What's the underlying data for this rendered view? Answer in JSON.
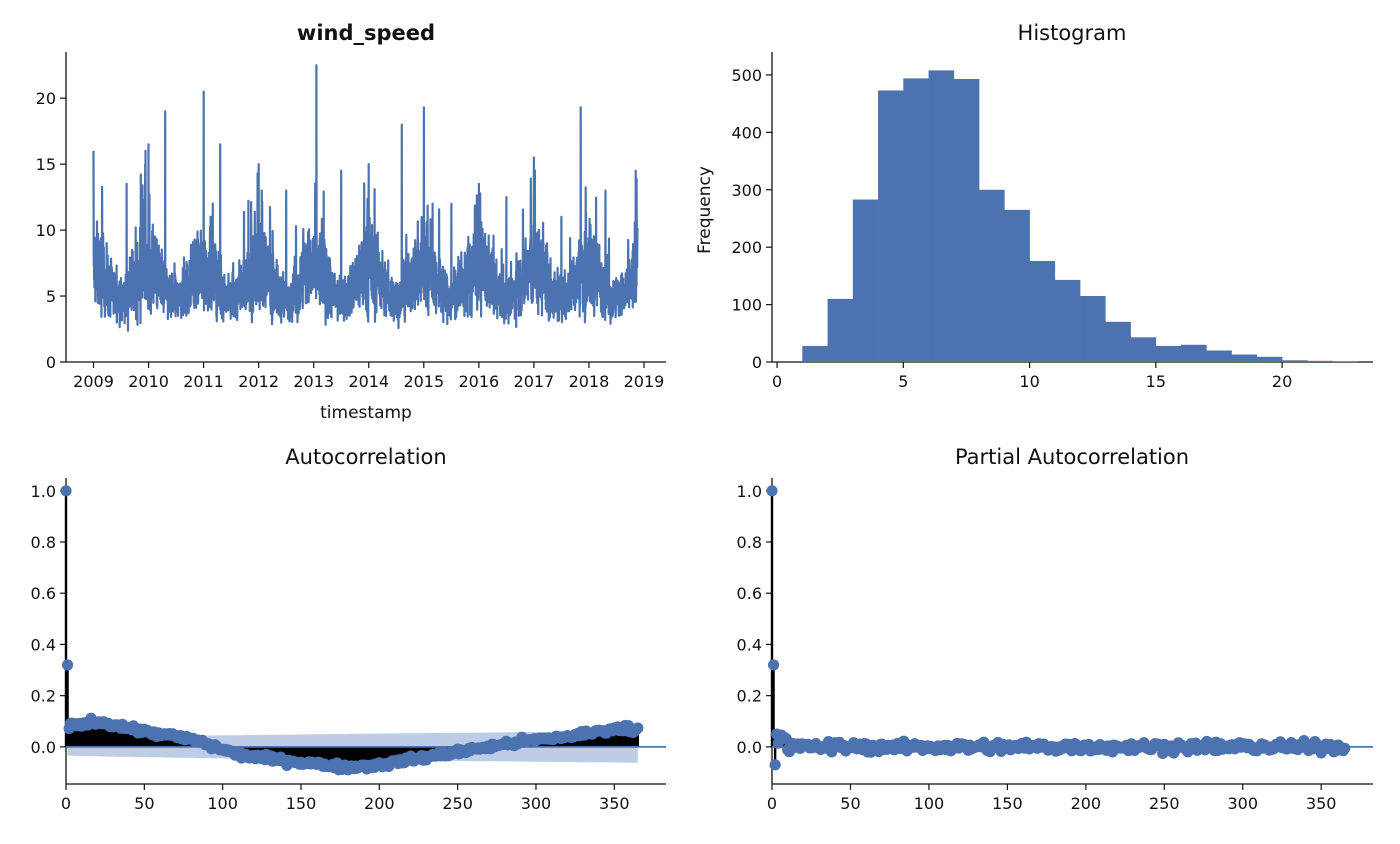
{
  "chart_data": [
    {
      "type": "line",
      "title": "wind_speed",
      "xlabel": "timestamp",
      "ylabel": "",
      "xlim": [
        2008.5,
        2019.4
      ],
      "ylim": [
        0,
        23.5
      ],
      "x_ticks": [
        2009,
        2010,
        2011,
        2012,
        2013,
        2014,
        2015,
        2016,
        2017,
        2018,
        2019
      ],
      "x_tick_labels": [
        "2009",
        "2010",
        "2011",
        "2012",
        "2013",
        "2014",
        "2015",
        "2016",
        "2017",
        "2018",
        "2019"
      ],
      "y_ticks": [
        0,
        5,
        10,
        15,
        20
      ],
      "y_tick_labels": [
        "0",
        "5",
        "10",
        "15",
        "20"
      ],
      "x_range": [
        2009.0,
        2018.88
      ],
      "series": [
        {
          "color": "#4c72b0",
          "summary": {
            "typical_low": 2.5,
            "typical_high": 10.5,
            "max": 22.5,
            "min": 1.0
          },
          "peaks": [
            {
              "x": 2009.0,
              "y": 16.0
            },
            {
              "x": 2009.6,
              "y": 13.5
            },
            {
              "x": 2010.0,
              "y": 16.5
            },
            {
              "x": 2010.3,
              "y": 19.0
            },
            {
              "x": 2011.0,
              "y": 20.5
            },
            {
              "x": 2011.3,
              "y": 16.5
            },
            {
              "x": 2012.0,
              "y": 15.0
            },
            {
              "x": 2012.5,
              "y": 13.0
            },
            {
              "x": 2013.05,
              "y": 22.5
            },
            {
              "x": 2013.5,
              "y": 14.5
            },
            {
              "x": 2014.0,
              "y": 15.0
            },
            {
              "x": 2014.6,
              "y": 18.0
            },
            {
              "x": 2015.0,
              "y": 19.3
            },
            {
              "x": 2015.5,
              "y": 12.0
            },
            {
              "x": 2016.0,
              "y": 13.5
            },
            {
              "x": 2016.5,
              "y": 12.5
            },
            {
              "x": 2017.0,
              "y": 15.5
            },
            {
              "x": 2017.5,
              "y": 11.0
            },
            {
              "x": 2017.85,
              "y": 19.3
            },
            {
              "x": 2018.3,
              "y": 13.0
            },
            {
              "x": 2018.85,
              "y": 14.5
            }
          ]
        }
      ]
    },
    {
      "type": "bar",
      "title": "Histogram",
      "xlabel": "",
      "ylabel": "Frequency",
      "xlim": [
        -0.2,
        23.6
      ],
      "ylim": [
        0,
        540
      ],
      "x_ticks": [
        0,
        5,
        10,
        15,
        20
      ],
      "x_tick_labels": [
        "0",
        "5",
        "10",
        "15",
        "20"
      ],
      "y_ticks": [
        0,
        100,
        200,
        300,
        400,
        500
      ],
      "y_tick_labels": [
        "0",
        "100",
        "200",
        "300",
        "400",
        "500"
      ],
      "bin_edges": [
        1.0,
        2.0,
        3.0,
        4.0,
        5.0,
        6.0,
        7.0,
        8.0,
        9.0,
        10.0,
        11.0,
        12.0,
        13.0,
        14.0,
        15.0,
        16.0,
        17.0,
        18.0,
        19.0,
        20.0,
        21.0,
        22.0,
        23.0
      ],
      "values": [
        28,
        110,
        283,
        473,
        494,
        508,
        493,
        300,
        265,
        176,
        143,
        115,
        70,
        43,
        28,
        30,
        20,
        13,
        9,
        3,
        2,
        1
      ],
      "color": "#4c72b0"
    },
    {
      "type": "scatter",
      "title": "Autocorrelation",
      "xlabel": "",
      "ylabel": "",
      "xlim": [
        0,
        383
      ],
      "ylim": [
        -0.145,
        1.05
      ],
      "x_ticks": [
        0,
        50,
        100,
        150,
        200,
        250,
        300,
        350
      ],
      "x_tick_labels": [
        "0",
        "50",
        "100",
        "150",
        "200",
        "250",
        "300",
        "350"
      ],
      "y_ticks": [
        0.0,
        0.2,
        0.4,
        0.6,
        0.8,
        1.0
      ],
      "y_tick_labels": [
        "0.0",
        "0.2",
        "0.4",
        "0.6",
        "0.8",
        "1.0"
      ],
      "lags": [
        0,
        365
      ],
      "lag0": 1.0,
      "lag1": 0.32,
      "trend": [
        [
          2,
          0.08
        ],
        [
          20,
          0.1
        ],
        [
          50,
          0.06
        ],
        [
          80,
          0.03
        ],
        [
          110,
          -0.03
        ],
        [
          150,
          -0.06
        ],
        [
          180,
          -0.08
        ],
        [
          200,
          -0.07
        ],
        [
          230,
          -0.04
        ],
        [
          260,
          -0.01
        ],
        [
          290,
          0.02
        ],
        [
          320,
          0.04
        ],
        [
          350,
          0.07
        ],
        [
          365,
          0.07
        ]
      ],
      "confidence_band": [
        [
          1,
          0.035
        ],
        [
          100,
          0.045
        ],
        [
          200,
          0.052
        ],
        [
          300,
          0.058
        ],
        [
          365,
          0.062
        ]
      ],
      "marker_color": "#4c72b0",
      "stem_color": "#000000",
      "band_color": "#b3c3e0"
    },
    {
      "type": "scatter",
      "title": "Partial Autocorrelation",
      "xlabel": "",
      "ylabel": "",
      "xlim": [
        0,
        383
      ],
      "ylim": [
        -0.145,
        1.05
      ],
      "x_ticks": [
        0,
        50,
        100,
        150,
        200,
        250,
        300,
        350
      ],
      "x_tick_labels": [
        "0",
        "50",
        "100",
        "150",
        "200",
        "250",
        "300",
        "350"
      ],
      "y_ticks": [
        0.0,
        0.2,
        0.4,
        0.6,
        0.8,
        1.0
      ],
      "y_tick_labels": [
        "0.0",
        "0.2",
        "0.4",
        "0.6",
        "0.8",
        "1.0"
      ],
      "lags": [
        0,
        365
      ],
      "lag0": 1.0,
      "lag1": 0.32,
      "lag2": -0.07,
      "spread": 0.035,
      "marker_color": "#4c72b0",
      "stem_color": "#000000"
    }
  ]
}
